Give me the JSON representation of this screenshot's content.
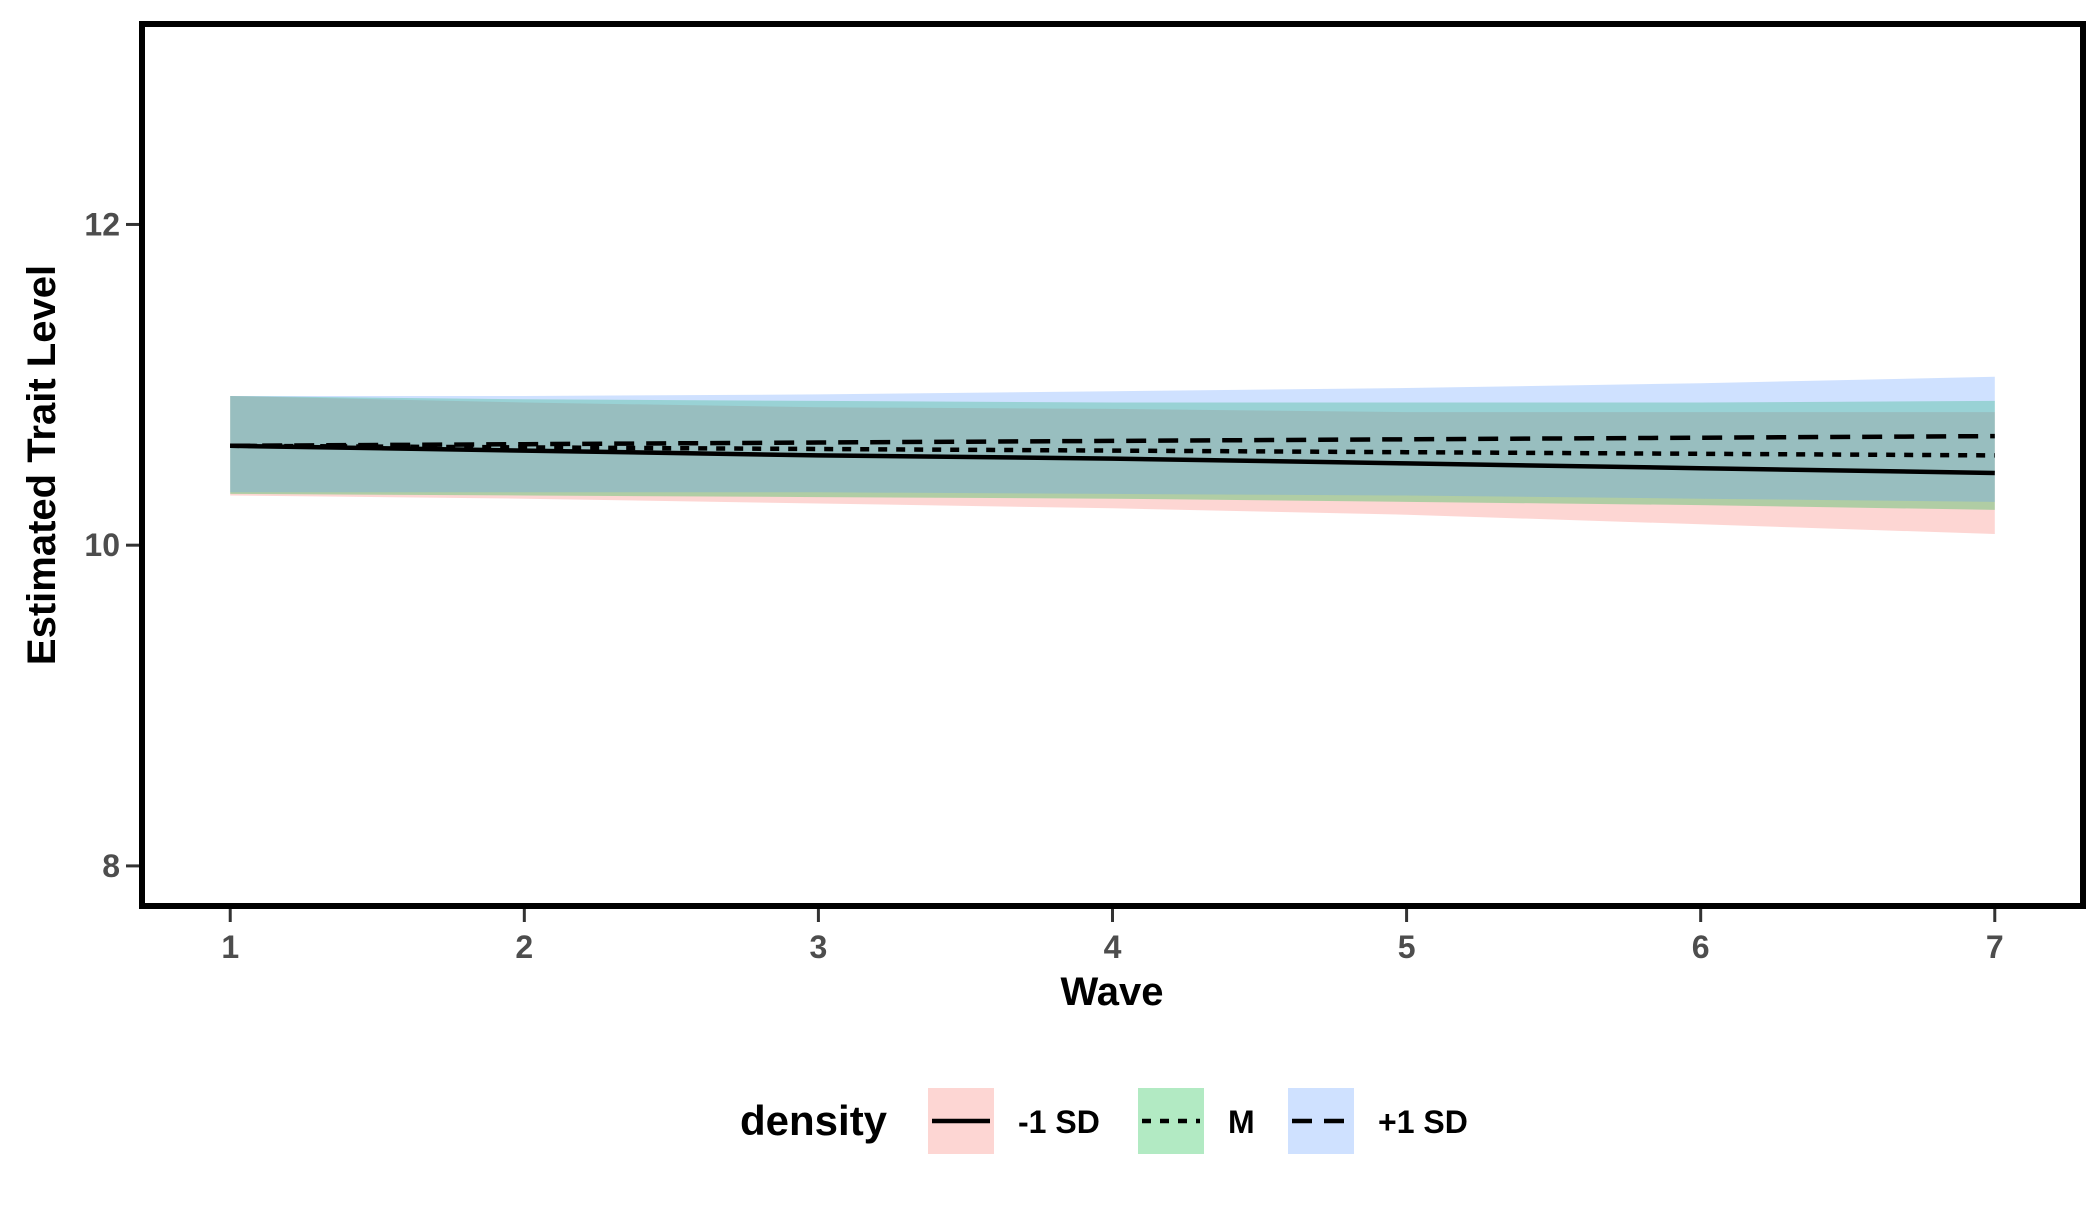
{
  "chart_data": {
    "type": "line",
    "title": "",
    "xlabel": "Wave",
    "ylabel": "Estimated Trait Level",
    "xlim": [
      0.7,
      7.3
    ],
    "ylim": [
      7.75,
      13.25
    ],
    "x_ticks": [
      1,
      2,
      3,
      4,
      5,
      6,
      7
    ],
    "y_ticks": [
      8,
      10,
      12
    ],
    "grid": false,
    "legend": {
      "title": "density",
      "position": "bottom",
      "entries": [
        "-1 SD",
        "M",
        "+1 SD"
      ]
    },
    "x": [
      1,
      2,
      3,
      4,
      5,
      6,
      7
    ],
    "series": [
      {
        "name": "-1 SD",
        "line_style": "solid",
        "fill_color": "#F8766D",
        "values": [
          10.62,
          10.59,
          10.56,
          10.54,
          10.51,
          10.48,
          10.45
        ],
        "lower": [
          10.31,
          10.29,
          10.26,
          10.23,
          10.19,
          10.13,
          10.07
        ],
        "upper": [
          10.93,
          10.89,
          10.86,
          10.85,
          10.83,
          10.83,
          10.83
        ]
      },
      {
        "name": "M",
        "line_style": "dotted",
        "fill_color": "#00BA38",
        "values": [
          10.62,
          10.61,
          10.6,
          10.59,
          10.58,
          10.57,
          10.56
        ],
        "lower": [
          10.32,
          10.31,
          10.3,
          10.29,
          10.27,
          10.25,
          10.22
        ],
        "upper": [
          10.93,
          10.91,
          10.9,
          10.89,
          10.89,
          10.89,
          10.9
        ]
      },
      {
        "name": "+1 SD",
        "line_style": "dashed",
        "fill_color": "#619CFF",
        "values": [
          10.62,
          10.63,
          10.64,
          10.65,
          10.66,
          10.67,
          10.68
        ],
        "lower": [
          10.33,
          10.33,
          10.33,
          10.32,
          10.31,
          10.29,
          10.27
        ],
        "upper": [
          10.93,
          10.93,
          10.94,
          10.96,
          10.98,
          11.01,
          11.05
        ]
      }
    ]
  }
}
